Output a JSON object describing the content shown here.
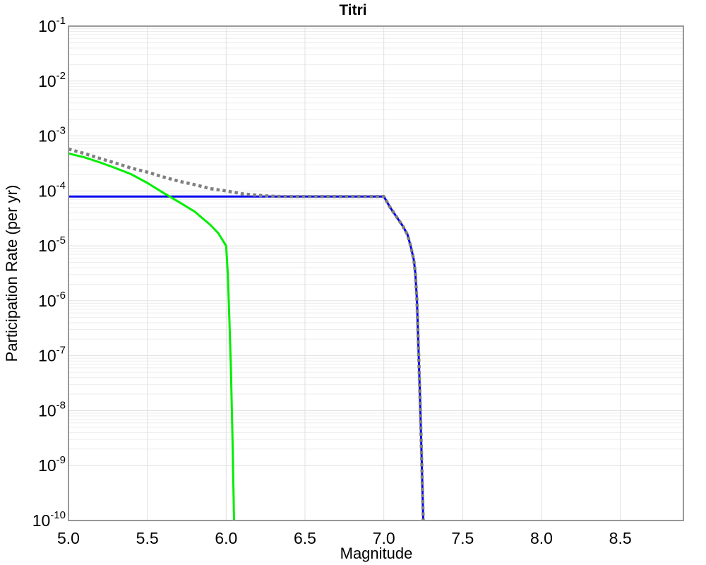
{
  "palette": {
    "background": "#ffffff",
    "frame": "#999999",
    "grid_major": "#e0e0e0",
    "grid_minor": "#ededed",
    "text": "#000000"
  },
  "chart_data": {
    "type": "line",
    "title": "Titri",
    "xlabel": "Magnitude",
    "ylabel": "Participation Rate (per yr)",
    "xlim": [
      5.0,
      8.9
    ],
    "yscale": "log",
    "ylim": [
      1e-10,
      0.1
    ],
    "x_ticks": [
      5.0,
      5.5,
      6.0,
      6.5,
      7.0,
      7.5,
      8.0,
      8.5
    ],
    "x_tick_labels": [
      "5.0",
      "5.5",
      "6.0",
      "6.5",
      "7.0",
      "7.5",
      "8.0",
      "8.5"
    ],
    "y_tick_exponents": [
      -1,
      -2,
      -3,
      -4,
      -5,
      -6,
      -7,
      -8,
      -9,
      -10
    ],
    "y_tick_base": "10",
    "grid": {
      "major": true,
      "minor_y": true,
      "minor_x": false
    },
    "legend": "none",
    "series": [
      {
        "name": "flat-rate-blue",
        "color": "#0000ee",
        "style": "solid",
        "width": 3,
        "points": [
          [
            5.0,
            7.9e-05
          ],
          [
            7.0,
            7.9e-05
          ],
          [
            7.04,
            5e-05
          ],
          [
            7.08,
            3.4e-05
          ],
          [
            7.12,
            2.3e-05
          ],
          [
            7.15,
            1.6e-05
          ],
          [
            7.17,
            1e-05
          ],
          [
            7.19,
            5.6e-06
          ],
          [
            7.2,
            3.2e-06
          ],
          [
            7.21,
            1e-06
          ],
          [
            7.22,
            1.3e-07
          ],
          [
            7.23,
            1.6e-08
          ],
          [
            7.24,
            1.3e-09
          ],
          [
            7.25,
            1e-10
          ]
        ]
      },
      {
        "name": "char-rate-green",
        "color": "#00ee00",
        "style": "solid",
        "width": 3,
        "points": [
          [
            5.0,
            0.00048
          ],
          [
            5.1,
            0.00041
          ],
          [
            5.2,
            0.00033
          ],
          [
            5.3,
            0.00026
          ],
          [
            5.4,
            0.0002
          ],
          [
            5.5,
            0.00014
          ],
          [
            5.6,
            9.3e-05
          ],
          [
            5.7,
            6.3e-05
          ],
          [
            5.8,
            4.2e-05
          ],
          [
            5.9,
            2.4e-05
          ],
          [
            5.95,
            1.7e-05
          ],
          [
            6.0,
            1e-05
          ],
          [
            6.01,
            3.2e-06
          ],
          [
            6.02,
            5e-07
          ],
          [
            6.03,
            6.3e-08
          ],
          [
            6.04,
            3.2e-09
          ],
          [
            6.05,
            1e-10
          ]
        ]
      },
      {
        "name": "gr-rate-gray-dotted",
        "color": "#808080",
        "style": "dotted",
        "width": 4.5,
        "points": [
          [
            5.0,
            0.00058
          ],
          [
            5.1,
            0.00048
          ],
          [
            5.2,
            0.00039
          ],
          [
            5.3,
            0.00032
          ],
          [
            5.4,
            0.00026
          ],
          [
            5.5,
            0.00022
          ],
          [
            5.6,
            0.00018
          ],
          [
            5.7,
            0.00015
          ],
          [
            5.8,
            0.00013
          ],
          [
            5.9,
            0.00011
          ],
          [
            6.0,
            0.0001
          ],
          [
            6.1,
            8.9e-05
          ],
          [
            6.2,
            8.3e-05
          ],
          [
            6.3,
            8e-05
          ],
          [
            6.4,
            7.9e-05
          ],
          [
            7.0,
            7.9e-05
          ],
          [
            7.04,
            5e-05
          ],
          [
            7.08,
            3.4e-05
          ],
          [
            7.12,
            2.3e-05
          ],
          [
            7.15,
            1.6e-05
          ],
          [
            7.17,
            1e-05
          ],
          [
            7.19,
            5.6e-06
          ],
          [
            7.2,
            3.2e-06
          ],
          [
            7.21,
            1e-06
          ],
          [
            7.22,
            1.3e-07
          ],
          [
            7.23,
            1.6e-08
          ],
          [
            7.24,
            1.3e-09
          ],
          [
            7.25,
            1e-10
          ]
        ]
      }
    ]
  }
}
